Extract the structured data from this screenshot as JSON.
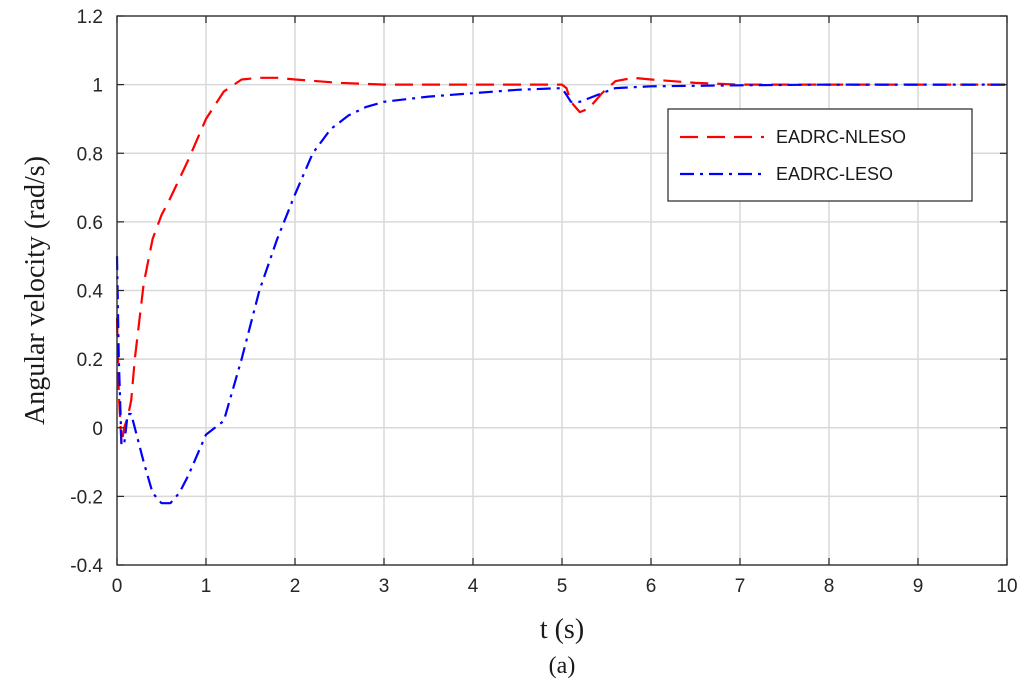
{
  "chart_data": {
    "type": "line",
    "xlabel": "t (s)",
    "ylabel": "Angular velocity (rad/s)",
    "caption": "(a)",
    "xlim": [
      0,
      10
    ],
    "ylim": [
      -0.4,
      1.2
    ],
    "xticks": [
      0,
      1,
      2,
      3,
      4,
      5,
      6,
      7,
      8,
      9,
      10
    ],
    "yticks": [
      -0.4,
      -0.2,
      0,
      0.2,
      0.4,
      0.6,
      0.8,
      1,
      1.2
    ],
    "xtick_labels": [
      "0",
      "1",
      "2",
      "3",
      "4",
      "5",
      "6",
      "7",
      "8",
      "9",
      "10"
    ],
    "ytick_labels": [
      "-0.4",
      "-0.2",
      "0",
      "0.2",
      "0.4",
      "0.6",
      "0.8",
      "1",
      "1.2"
    ],
    "grid": true,
    "legend_position": "top-right",
    "series": [
      {
        "name": "EADRC-NLESO",
        "color": "#ff0000",
        "dash": "dashed",
        "x": [
          0,
          0.02,
          0.05,
          0.08,
          0.12,
          0.16,
          0.2,
          0.3,
          0.4,
          0.5,
          0.6,
          0.8,
          1.0,
          1.2,
          1.4,
          1.6,
          1.8,
          2.0,
          2.5,
          3.0,
          4.0,
          5.0,
          5.05,
          5.1,
          5.2,
          5.3,
          5.45,
          5.6,
          5.8,
          6.0,
          6.5,
          7.0,
          8.0,
          10.0
        ],
        "y": [
          0.32,
          0.1,
          -0.05,
          0.0,
          0.03,
          0.08,
          0.2,
          0.42,
          0.55,
          0.62,
          0.67,
          0.78,
          0.9,
          0.98,
          1.015,
          1.02,
          1.02,
          1.015,
          1.005,
          1.0,
          1.0,
          1.0,
          0.99,
          0.95,
          0.92,
          0.93,
          0.975,
          1.01,
          1.02,
          1.015,
          1.005,
          1.0,
          1.0,
          1.0
        ]
      },
      {
        "name": "EADRC-LESO",
        "color": "#0000ff",
        "dash": "dashdot",
        "x": [
          0,
          0.02,
          0.05,
          0.08,
          0.12,
          0.16,
          0.2,
          0.3,
          0.4,
          0.5,
          0.6,
          0.7,
          0.8,
          0.9,
          1.0,
          1.1,
          1.2,
          1.4,
          1.6,
          1.8,
          2.0,
          2.2,
          2.4,
          2.6,
          2.8,
          3.0,
          3.5,
          4.0,
          4.5,
          5.0,
          5.05,
          5.1,
          5.2,
          5.4,
          5.6,
          6.0,
          7.0,
          8.0,
          10.0
        ],
        "y": [
          0.5,
          0.2,
          -0.05,
          -0.05,
          0.04,
          0.04,
          0.0,
          -0.1,
          -0.19,
          -0.22,
          -0.22,
          -0.19,
          -0.14,
          -0.08,
          -0.02,
          0.0,
          0.02,
          0.2,
          0.4,
          0.55,
          0.68,
          0.8,
          0.87,
          0.91,
          0.935,
          0.95,
          0.965,
          0.975,
          0.985,
          0.99,
          0.97,
          0.95,
          0.95,
          0.97,
          0.99,
          0.995,
          0.998,
          1.0,
          1.0
        ]
      }
    ]
  }
}
